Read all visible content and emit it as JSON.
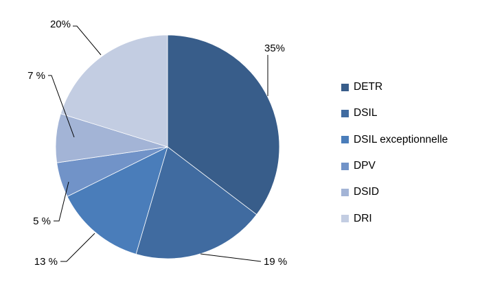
{
  "chart_data": {
    "type": "pie",
    "title": "",
    "start_angle_deg": 0,
    "direction": "clockwise",
    "legend_position": "right",
    "slices": [
      {
        "name": "DETR",
        "value": 35,
        "label": "35%",
        "color": "#385d8a"
      },
      {
        "name": "DSIL",
        "value": 19,
        "label": "19 %",
        "color": "#406ba0"
      },
      {
        "name": "DSIL exceptionnelle",
        "value": 13,
        "label": "13 %",
        "color": "#4a7dba"
      },
      {
        "name": "DPV",
        "value": 5,
        "label": "5 %",
        "color": "#7193c8"
      },
      {
        "name": "DSID",
        "value": 7,
        "label": "7 %",
        "color": "#a3b4d6"
      },
      {
        "name": "DRI",
        "value": 20,
        "label": "20%",
        "color": "#c3cde2"
      }
    ]
  }
}
